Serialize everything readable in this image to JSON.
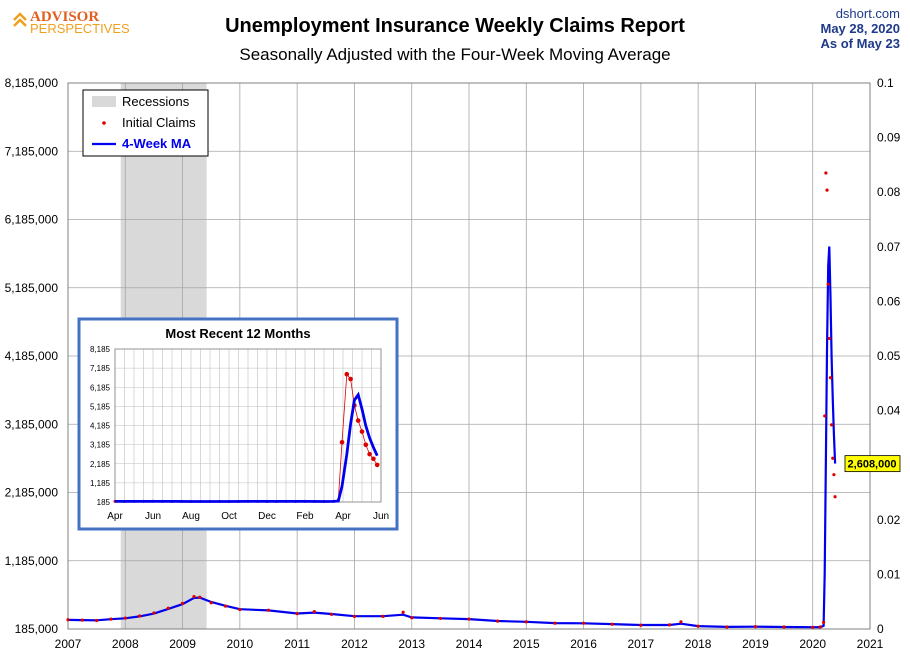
{
  "header": {
    "logo_line1": "ADVISOR",
    "logo_line2": "PERSPECTIVES",
    "title": "Unemployment Insurance Weekly Claims Report",
    "subtitle": "Seasonally Adjusted with the Four-Week Moving Average",
    "source": "dshort.com",
    "date": "May 28, 2020",
    "as_of": "As of May 23"
  },
  "colors": {
    "claims": "#dd0000",
    "ma": "#0000ee",
    "recession": "#d9d9d9",
    "grid": "#a6a6a6",
    "inset_border": "#4472c4",
    "callout_bg": "#ffff00"
  },
  "chart_data": [
    {
      "type": "line",
      "title": "Unemployment Insurance Weekly Claims Report",
      "subtitle": "Seasonally Adjusted with the Four-Week Moving Average",
      "x_ticks": [
        "2007",
        "2008",
        "2009",
        "2010",
        "2011",
        "2012",
        "2013",
        "2014",
        "2015",
        "2016",
        "2017",
        "2018",
        "2019",
        "2020",
        "2021"
      ],
      "y_ticks": [
        "185,000",
        "1,185,000",
        "2,185,000",
        "3,185,000",
        "4,185,000",
        "5,185,000",
        "6,185,000",
        "7,185,000",
        "8,185,000"
      ],
      "y2_ticks": [
        "0",
        "0.01",
        "0.02",
        "0.03",
        "0.04",
        "0.05",
        "0.06",
        "0.07",
        "0.08",
        "0.09",
        "0.1"
      ],
      "xlim": [
        2007,
        2021
      ],
      "ylim": [
        185000,
        8185000
      ],
      "grid": true,
      "legend_position": "top-left",
      "legend": [
        "Recessions",
        "Initial Claims",
        "4-Week MA"
      ],
      "recession": [
        2007.92,
        2009.42
      ],
      "callout": {
        "label": "2,608,000",
        "x": 2020.39,
        "y": 2608000
      },
      "initial_claims": [
        [
          2007.0,
          320000
        ],
        [
          2007.25,
          315000
        ],
        [
          2007.5,
          310000
        ],
        [
          2007.75,
          330000
        ],
        [
          2008.0,
          345000
        ],
        [
          2008.25,
          375000
        ],
        [
          2008.5,
          420000
        ],
        [
          2008.75,
          490000
        ],
        [
          2009.0,
          560000
        ],
        [
          2009.2,
          660000
        ],
        [
          2009.3,
          650000
        ],
        [
          2009.5,
          570000
        ],
        [
          2009.75,
          520000
        ],
        [
          2010.0,
          470000
        ],
        [
          2010.5,
          460000
        ],
        [
          2011.0,
          410000
        ],
        [
          2011.3,
          440000
        ],
        [
          2011.6,
          400000
        ],
        [
          2012.0,
          370000
        ],
        [
          2012.5,
          370000
        ],
        [
          2012.85,
          430000
        ],
        [
          2013.0,
          350000
        ],
        [
          2013.5,
          340000
        ],
        [
          2014.0,
          330000
        ],
        [
          2014.5,
          300000
        ],
        [
          2015.0,
          290000
        ],
        [
          2015.5,
          270000
        ],
        [
          2016.0,
          270000
        ],
        [
          2016.5,
          255000
        ],
        [
          2017.0,
          240000
        ],
        [
          2017.5,
          245000
        ],
        [
          2017.7,
          290000
        ],
        [
          2018.0,
          225000
        ],
        [
          2018.5,
          215000
        ],
        [
          2019.0,
          220000
        ],
        [
          2019.5,
          215000
        ],
        [
          2020.0,
          210000
        ],
        [
          2020.13,
          215000
        ],
        [
          2020.19,
          282000
        ],
        [
          2020.21,
          3307000
        ],
        [
          2020.23,
          6867000
        ],
        [
          2020.25,
          6615000
        ],
        [
          2020.27,
          5237000
        ],
        [
          2020.29,
          4442000
        ],
        [
          2020.31,
          3867000
        ],
        [
          2020.33,
          3176000
        ],
        [
          2020.35,
          2687000
        ],
        [
          2020.37,
          2446000
        ],
        [
          2020.39,
          2123000
        ]
      ],
      "ma_4week": [
        [
          2007.0,
          318000
        ],
        [
          2007.25,
          316000
        ],
        [
          2007.5,
          312000
        ],
        [
          2007.75,
          328000
        ],
        [
          2008.0,
          342000
        ],
        [
          2008.25,
          370000
        ],
        [
          2008.5,
          410000
        ],
        [
          2008.75,
          480000
        ],
        [
          2009.0,
          550000
        ],
        [
          2009.2,
          640000
        ],
        [
          2009.3,
          645000
        ],
        [
          2009.5,
          580000
        ],
        [
          2009.75,
          525000
        ],
        [
          2010.0,
          475000
        ],
        [
          2010.5,
          458000
        ],
        [
          2011.0,
          412000
        ],
        [
          2011.3,
          425000
        ],
        [
          2011.6,
          405000
        ],
        [
          2012.0,
          372000
        ],
        [
          2012.5,
          372000
        ],
        [
          2012.85,
          395000
        ],
        [
          2013.0,
          355000
        ],
        [
          2013.5,
          342000
        ],
        [
          2014.0,
          330000
        ],
        [
          2014.5,
          302000
        ],
        [
          2015.0,
          290000
        ],
        [
          2015.5,
          272000
        ],
        [
          2016.0,
          268000
        ],
        [
          2016.5,
          257000
        ],
        [
          2017.0,
          243000
        ],
        [
          2017.5,
          244000
        ],
        [
          2017.7,
          262000
        ],
        [
          2018.0,
          228000
        ],
        [
          2018.5,
          216000
        ],
        [
          2019.0,
          219000
        ],
        [
          2019.5,
          215000
        ],
        [
          2020.0,
          211000
        ],
        [
          2020.13,
          213000
        ],
        [
          2020.19,
          230000
        ],
        [
          2020.21,
          1000000
        ],
        [
          2020.23,
          2677000
        ],
        [
          2020.25,
          4267000
        ],
        [
          2020.27,
          5506000
        ],
        [
          2020.29,
          5790000
        ],
        [
          2020.31,
          5040000
        ],
        [
          2020.33,
          4168000
        ],
        [
          2020.35,
          3536000
        ],
        [
          2020.37,
          3044000
        ],
        [
          2020.39,
          2608000
        ]
      ]
    },
    {
      "type": "line",
      "title": "Most Recent 12 Months",
      "x_ticks": [
        "Apr",
        "Jun",
        "Aug",
        "Oct",
        "Dec",
        "Feb",
        "Apr",
        "Jun"
      ],
      "y_ticks": [
        "185",
        "1,185",
        "2,185",
        "3,185",
        "4,185",
        "5,185",
        "6,185",
        "7,185",
        "8,185"
      ],
      "xlim": [
        0,
        14
      ],
      "ylim": [
        185,
        8185
      ],
      "grid": true,
      "initial_claims": [
        [
          0.0,
          215
        ],
        [
          0.5,
          213
        ],
        [
          1.0,
          220
        ],
        [
          1.5,
          215
        ],
        [
          2.0,
          222
        ],
        [
          2.5,
          218
        ],
        [
          3.0,
          214
        ],
        [
          3.5,
          216
        ],
        [
          4.0,
          212
        ],
        [
          4.5,
          214
        ],
        [
          5.0,
          210
        ],
        [
          5.5,
          215
        ],
        [
          6.0,
          212
        ],
        [
          6.5,
          214
        ],
        [
          7.0,
          218
        ],
        [
          7.5,
          220
        ],
        [
          8.0,
          214
        ],
        [
          8.5,
          212
        ],
        [
          9.0,
          216
        ],
        [
          9.5,
          214
        ],
        [
          10.0,
          218
        ],
        [
          10.5,
          214
        ],
        [
          11.0,
          211
        ],
        [
          11.5,
          219
        ],
        [
          11.75,
          282
        ],
        [
          11.95,
          3307
        ],
        [
          12.2,
          6867
        ],
        [
          12.4,
          6615
        ],
        [
          12.6,
          5237
        ],
        [
          12.8,
          4442
        ],
        [
          13.0,
          3867
        ],
        [
          13.2,
          3176
        ],
        [
          13.4,
          2687
        ],
        [
          13.6,
          2446
        ],
        [
          13.8,
          2123
        ]
      ],
      "ma_4week": [
        [
          0.0,
          216
        ],
        [
          1.0,
          217
        ],
        [
          2.0,
          218
        ],
        [
          3.0,
          215
        ],
        [
          4.0,
          213
        ],
        [
          5.0,
          212
        ],
        [
          6.0,
          213
        ],
        [
          7.0,
          216
        ],
        [
          8.0,
          215
        ],
        [
          9.0,
          215
        ],
        [
          10.0,
          216
        ],
        [
          11.0,
          213
        ],
        [
          11.5,
          214
        ],
        [
          11.75,
          230
        ],
        [
          11.95,
          1000
        ],
        [
          12.2,
          2677
        ],
        [
          12.4,
          4267
        ],
        [
          12.6,
          5506
        ],
        [
          12.8,
          5790
        ],
        [
          13.0,
          5040
        ],
        [
          13.2,
          4168
        ],
        [
          13.4,
          3536
        ],
        [
          13.6,
          3044
        ],
        [
          13.8,
          2608
        ]
      ]
    }
  ]
}
